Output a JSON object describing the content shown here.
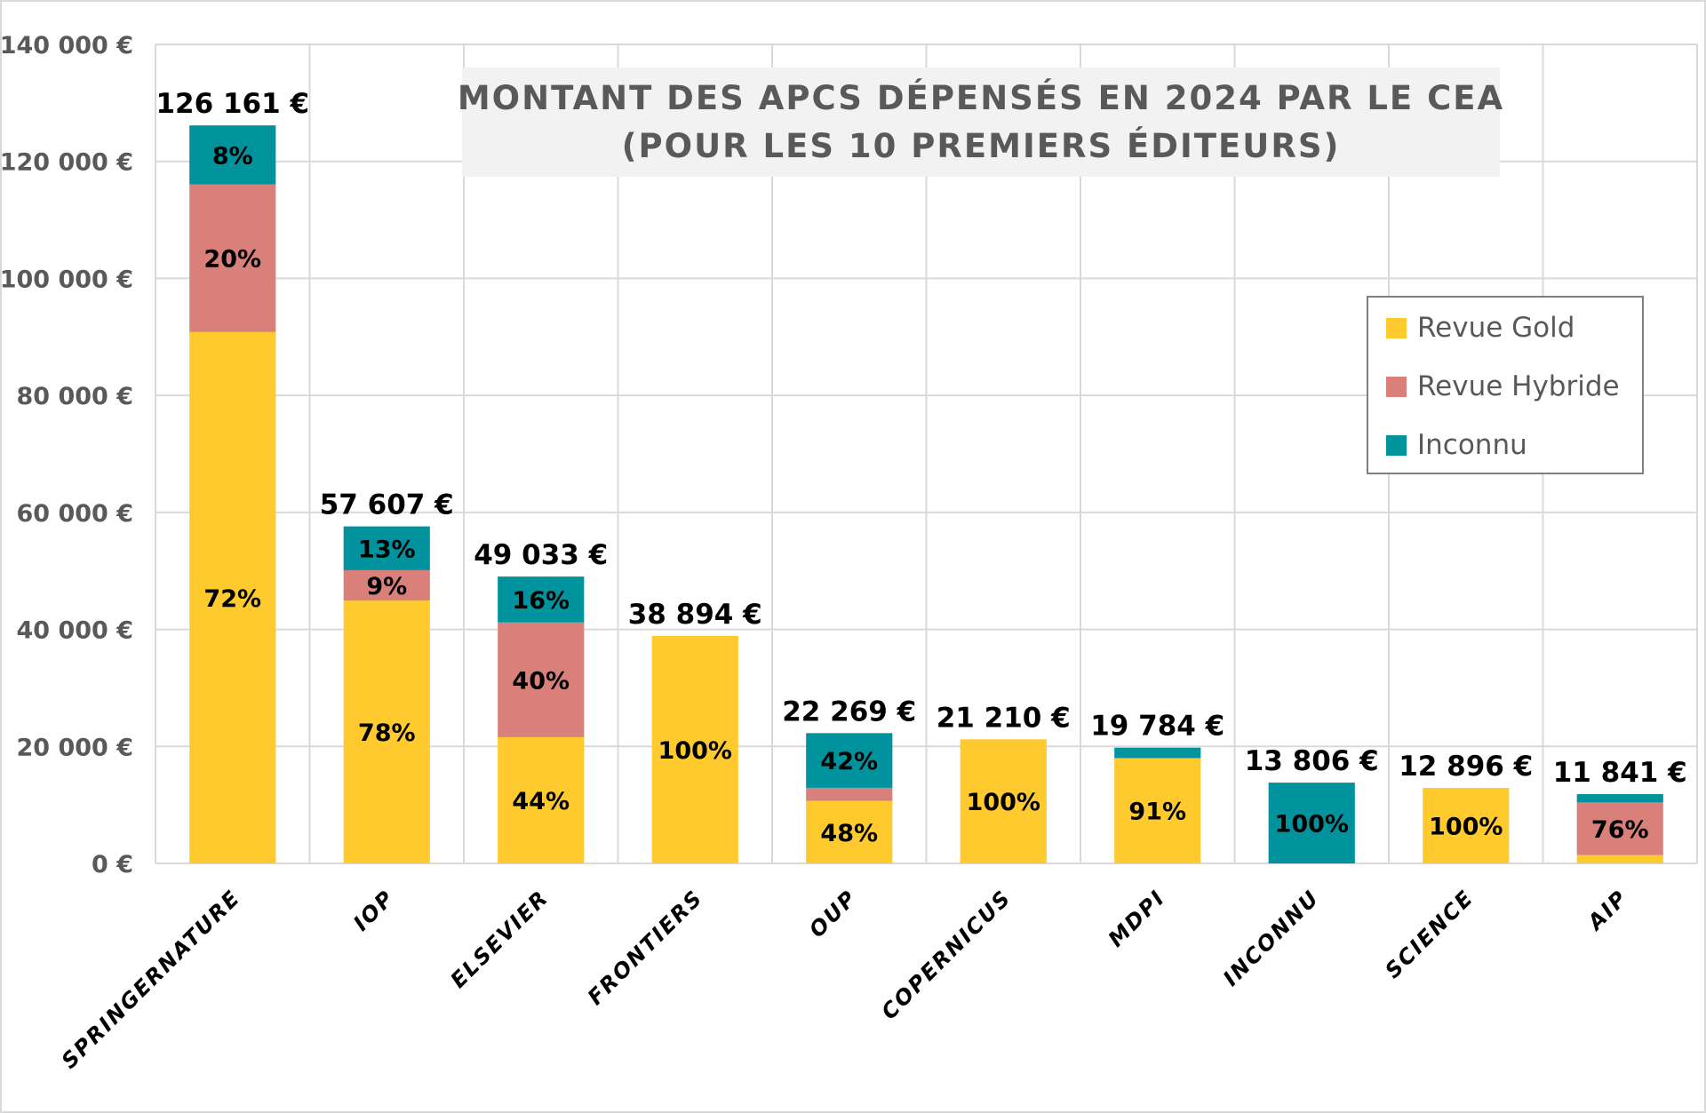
{
  "chart_data": {
    "type": "bar",
    "stacked": true,
    "title": "MONTANT DES APCS DÉPENSÉS EN 2024 PAR LE CEA",
    "subtitle": "(POUR LES 10 PREMIERS ÉDITEURS)",
    "xlabel": "",
    "ylabel": "",
    "ylim": [
      0,
      140000
    ],
    "yticks": [
      0,
      20000,
      40000,
      60000,
      80000,
      100000,
      120000,
      140000
    ],
    "ytick_labels": [
      "0 €",
      "20 000 €",
      "40 000 €",
      "60 000 €",
      "80 000 €",
      "100 000 €",
      "120 000 €",
      "140 000 €"
    ],
    "grid": true,
    "legend_position": "right",
    "categories": [
      "SPRINGERNATURE",
      "IOP",
      "ELSEVIER",
      "FRONTIERS",
      "OUP",
      "COPERNICUS",
      "MDPI",
      "INCONNU",
      "SCIENCE",
      "AIP"
    ],
    "totals": [
      126161,
      57607,
      49033,
      38894,
      22269,
      21210,
      19784,
      13806,
      12896,
      11841
    ],
    "total_labels": [
      "126 161 €",
      "57 607 €",
      "49 033 €",
      "38 894 €",
      "22 269 €",
      "21 210 €",
      "19 784 €",
      "13 806 €",
      "12 896 €",
      "11 841 €"
    ],
    "series": [
      {
        "name": "Revue Gold",
        "color": "#ffca2e",
        "values": [
          90836,
          44933,
          21575,
          38894,
          10689,
          21210,
          18003,
          0,
          12896,
          1421
        ],
        "labels": [
          "72%",
          "78%",
          "44%",
          "100%",
          "48%",
          "100%",
          "91%",
          "",
          "100%",
          ""
        ]
      },
      {
        "name": "Revue Hybride",
        "color": "#d9807a",
        "values": [
          25232,
          5185,
          19613,
          0,
          2227,
          0,
          0,
          0,
          0,
          8999
        ],
        "labels": [
          "20%",
          "9%",
          "40%",
          "",
          "",
          "",
          "",
          "",
          "",
          "76%"
        ]
      },
      {
        "name": "Inconnu",
        "color": "#00939e",
        "values": [
          10093,
          7489,
          7845,
          0,
          9353,
          0,
          1781,
          13806,
          0,
          1421
        ],
        "labels": [
          "8%",
          "13%",
          "16%",
          "",
          "42%",
          "",
          "",
          "100%",
          "",
          ""
        ]
      }
    ]
  }
}
